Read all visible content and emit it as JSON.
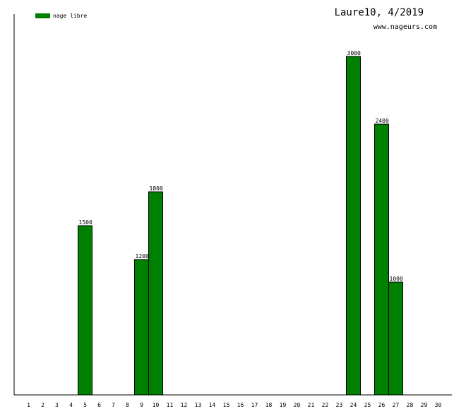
{
  "chart_data": {
    "type": "bar",
    "title": "Laure10, 4/2019",
    "subtitle": "www.nageurs.com",
    "xlabel": "",
    "ylabel": "",
    "categories": [
      "1",
      "2",
      "3",
      "4",
      "5",
      "6",
      "7",
      "8",
      "9",
      "10",
      "11",
      "12",
      "13",
      "14",
      "15",
      "16",
      "17",
      "18",
      "19",
      "20",
      "21",
      "22",
      "23",
      "24",
      "25",
      "26",
      "27",
      "28",
      "29",
      "30"
    ],
    "series": [
      {
        "name": "nage libre",
        "color": "#008000",
        "values": [
          0,
          0,
          0,
          0,
          1500,
          0,
          0,
          0,
          1200,
          1800,
          0,
          0,
          0,
          0,
          0,
          0,
          0,
          0,
          0,
          0,
          0,
          0,
          0,
          3000,
          0,
          2400,
          1000,
          0,
          0,
          0
        ]
      }
    ],
    "ylim": [
      0,
      3375
    ],
    "grid": false,
    "legend_position": "top-left"
  }
}
